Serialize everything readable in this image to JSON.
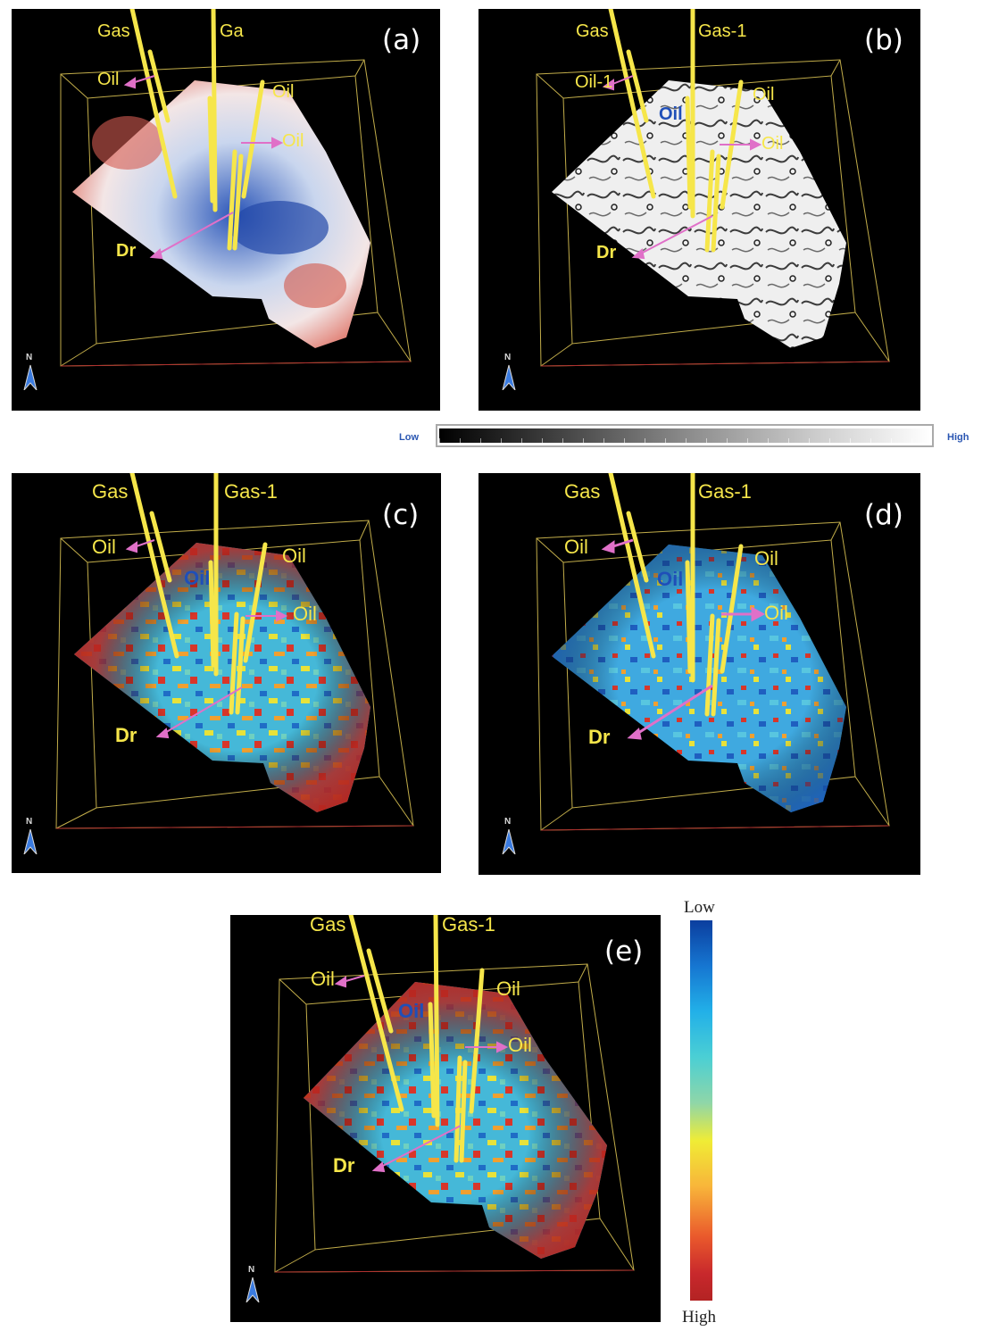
{
  "figure": {
    "panels": [
      {
        "id": "a",
        "label": "(a)",
        "wells": {
          "gas_left": "Gas",
          "gas_right": "Ga",
          "oil_top_left": "Oil",
          "oil_top_right": "Oil",
          "oil_arrow": "Oil",
          "drain": "Dr"
        },
        "north": "N",
        "colorscheme": "red-white-blue"
      },
      {
        "id": "b",
        "label": "(b)",
        "wells": {
          "gas_left": "Gas",
          "gas_right": "Gas-1",
          "oil_top_left": "Oil-1",
          "oil_inline": "Oil",
          "oil_top_right": "Oil",
          "oil_arrow": "Oil",
          "drain": "Dr"
        },
        "north": "N",
        "colorscheme": "grayscale"
      },
      {
        "id": "c",
        "label": "(c)",
        "wells": {
          "gas_left": "Gas",
          "gas_right": "Gas-1",
          "oil_top_left": "Oil",
          "oil_inline": "Oil",
          "oil_top_right": "Oil",
          "oil_arrow": "Oil",
          "drain": "Dr"
        },
        "north": "N",
        "colorscheme": "rainbow-red-dominant"
      },
      {
        "id": "d",
        "label": "(d)",
        "wells": {
          "gas_left": "Gas",
          "gas_right": "Gas-1",
          "oil_top_left": "Oil",
          "oil_inline": "Oil",
          "oil_top_right": "Oil",
          "oil_arrow": "Oil",
          "drain": "Dr"
        },
        "north": "N",
        "colorscheme": "rainbow-blue-dominant"
      },
      {
        "id": "e",
        "label": "(e)",
        "wells": {
          "gas_left": "Gas",
          "gas_right": "Gas-1",
          "oil_top_left": "Oil",
          "oil_inline": "Oil",
          "oil_top_right": "Oil",
          "oil_arrow": "Oil",
          "drain": "Dr"
        },
        "north": "N",
        "colorscheme": "rainbow-red-dominant"
      }
    ],
    "grayscale_colorbar": {
      "low": "Low",
      "high": "High"
    },
    "rainbow_colorbar": {
      "top": "Low",
      "bottom": "High"
    },
    "colors": {
      "well": "#f6e64a",
      "arrow": "#e070c8",
      "background": "#000000",
      "box_line": "#c2ad4a",
      "north_arrow": "#3a7be0"
    }
  }
}
